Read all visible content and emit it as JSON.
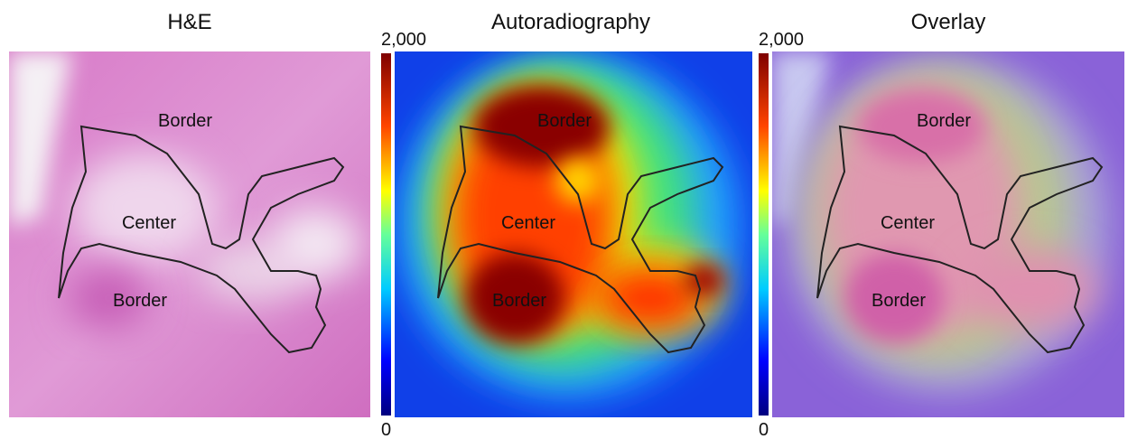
{
  "panels": [
    {
      "title": "H&E",
      "regions": [
        "Border",
        "Center",
        "Border"
      ]
    },
    {
      "title": "Autoradiography",
      "colorbar": {
        "max": "2,000",
        "min": "0"
      },
      "regions": [
        "Border",
        "Center",
        "Border"
      ]
    },
    {
      "title": "Overlay",
      "colorbar": {
        "max": "2,000",
        "min": "0"
      },
      "regions": [
        "Border",
        "Center",
        "Border"
      ]
    }
  ]
}
